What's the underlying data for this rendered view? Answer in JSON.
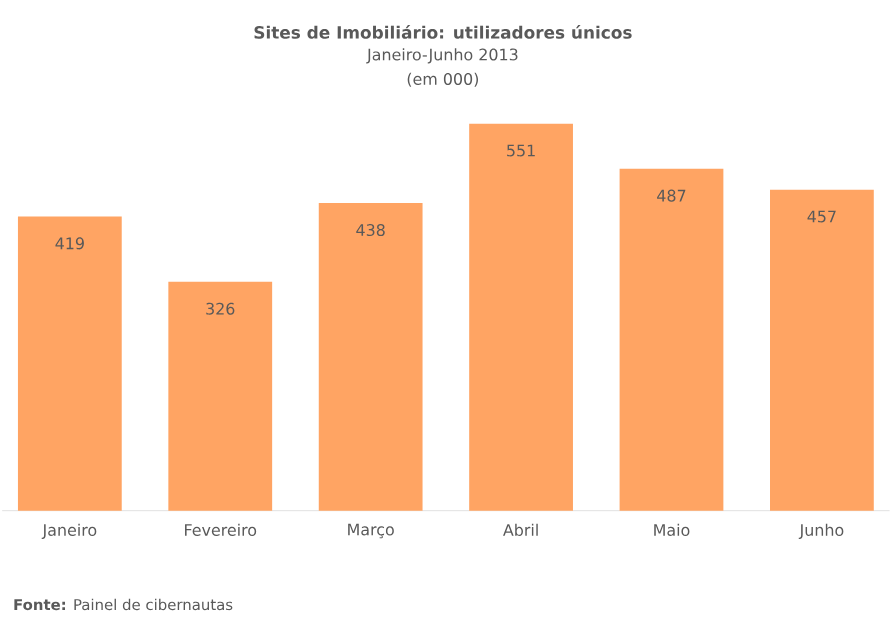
{
  "chart_data": {
    "type": "bar",
    "title": "Sites de Imobiliário: utilizadores únicos",
    "subtitle": "Janeiro-Junho 2013",
    "annotations": [
      "(em 000)",
      "**Fonte:** Painel de cibernautas"
    ],
    "categories": [
      "Janeiro",
      "Fevereiro",
      "Março",
      "Abril",
      "Maio",
      "Junho"
    ],
    "values": [
      419,
      326,
      438,
      551,
      487,
      457
    ],
    "color": "#ffa463",
    "data_labels": true
  }
}
